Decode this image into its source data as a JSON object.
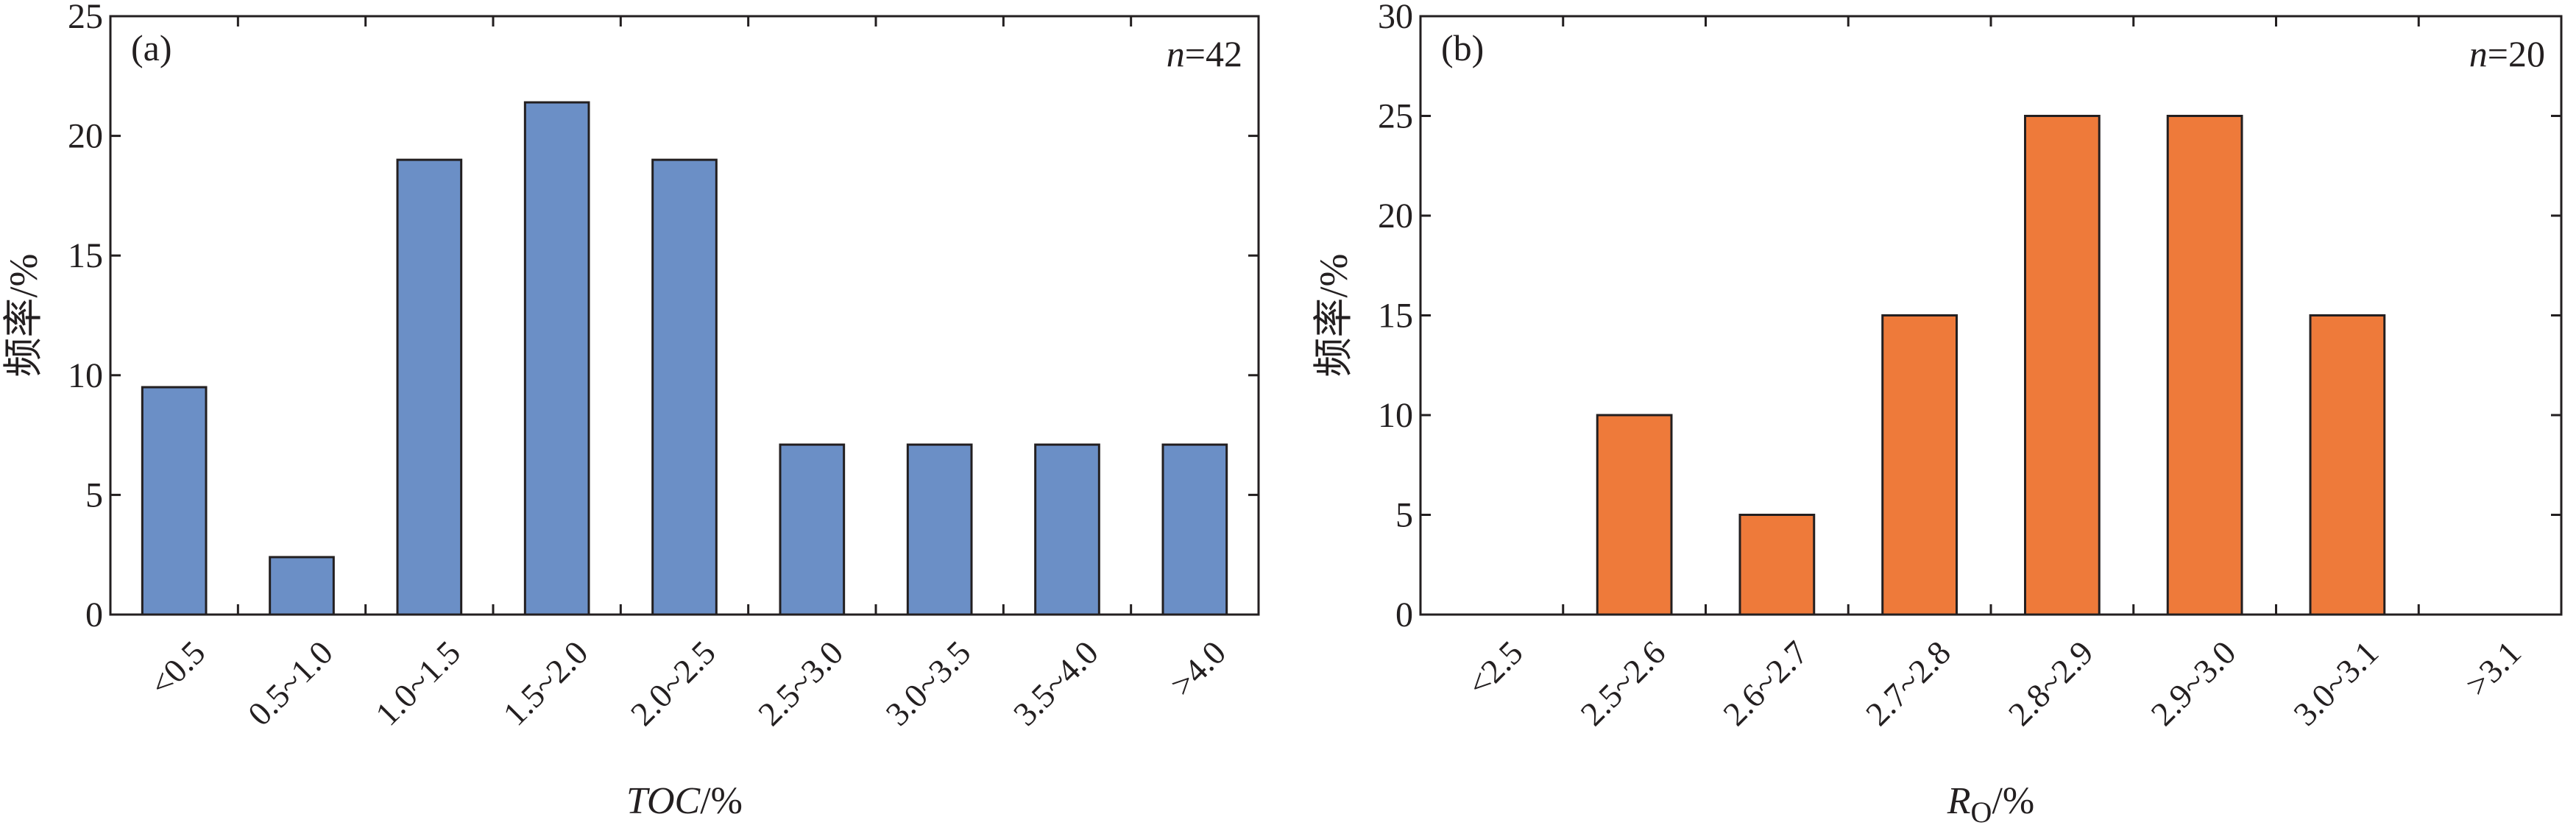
{
  "chart_data": [
    {
      "type": "bar",
      "panel_label": "(a)",
      "annotation": {
        "prefix": "n",
        "value": "=42"
      },
      "xlabel": "TOC/%",
      "xlabel_parts": {
        "main": "TOC",
        "sub": "",
        "unit": "/%"
      },
      "ylabel": "频率/%",
      "ylim": [
        0,
        25
      ],
      "yticks": [
        "0",
        "5",
        "10",
        "15",
        "20",
        "25"
      ],
      "categories": [
        "<0.5",
        "0.5~1.0",
        "1.0~1.5",
        "1.5~2.0",
        "2.0~2.5",
        "2.5~3.0",
        "3.0~3.5",
        "3.5~4.0",
        ">4.0"
      ],
      "values": [
        9.5,
        2.4,
        19.0,
        21.4,
        19.0,
        7.1,
        7.1,
        7.1,
        7.1
      ],
      "color": "#6b8fc6"
    },
    {
      "type": "bar",
      "panel_label": "(b)",
      "annotation": {
        "prefix": "n",
        "value": "=20"
      },
      "xlabel": "Ro/%",
      "xlabel_parts": {
        "main": "R",
        "sub": "O",
        "unit": "/%"
      },
      "ylabel": "频率/%",
      "ylim": [
        0,
        30
      ],
      "yticks": [
        "0",
        "5",
        "10",
        "15",
        "20",
        "25",
        "30"
      ],
      "categories": [
        "<2.5",
        "2.5~2.6",
        "2.6~2.7",
        "2.7~2.8",
        "2.8~2.9",
        "2.9~3.0",
        "3.0~3.1",
        ">3.1"
      ],
      "values": [
        0,
        10,
        5,
        15,
        25,
        25,
        15,
        0
      ],
      "color": "#ee7a3a"
    }
  ]
}
